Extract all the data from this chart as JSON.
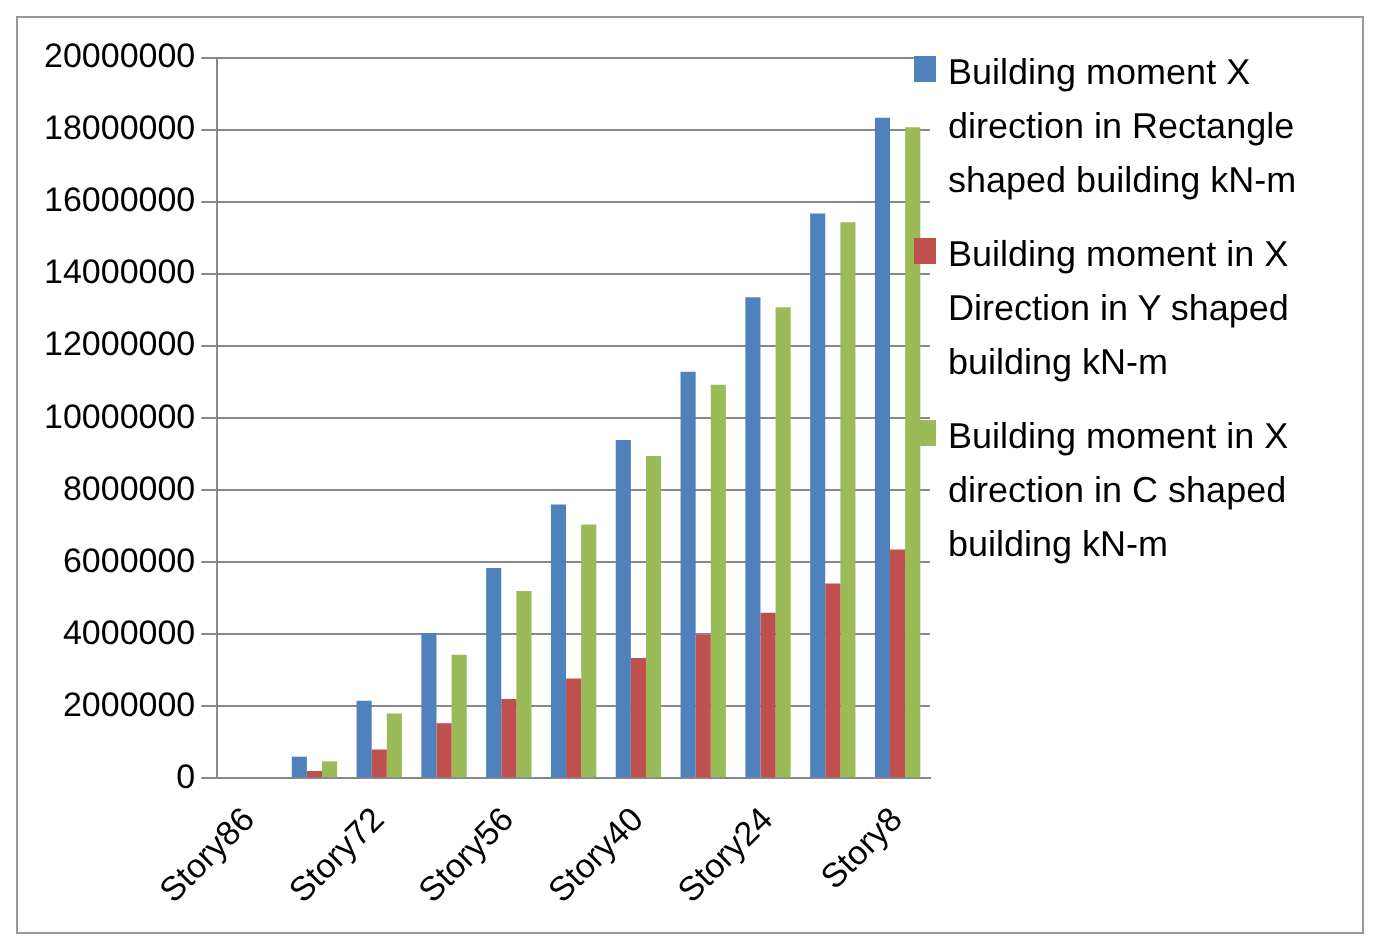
{
  "chart_data": {
    "type": "bar",
    "categories": [
      "Story86",
      null,
      "Story72",
      null,
      "Story56",
      null,
      "Story40",
      null,
      "Story24",
      null,
      "Story8"
    ],
    "series": [
      {
        "name": "Building moment X direction in Rectangle shaped building kN-m",
        "color": "#4f81bd",
        "values": [
          0,
          600000,
          2150000,
          4030000,
          5840000,
          7600000,
          9390000,
          11290000,
          13360000,
          15680000,
          18340000
        ]
      },
      {
        "name": "Building moment in X Direction in Y shaped building kN-m",
        "color": "#c0504d",
        "values": [
          0,
          200000,
          800000,
          1530000,
          2200000,
          2770000,
          3340000,
          3980000,
          4600000,
          5410000,
          6350000
        ]
      },
      {
        "name": "Building moment in X direction in C shaped building kN-m",
        "color": "#9bbb59",
        "values": [
          0,
          470000,
          1800000,
          3430000,
          5200000,
          7050000,
          8950000,
          10930000,
          13080000,
          15440000,
          18080000
        ]
      }
    ],
    "ylim": [
      0,
      20000000
    ],
    "yticks": [
      0,
      2000000,
      4000000,
      6000000,
      8000000,
      10000000,
      12000000,
      14000000,
      16000000,
      18000000,
      20000000
    ],
    "grid": "y",
    "legend": "right"
  }
}
